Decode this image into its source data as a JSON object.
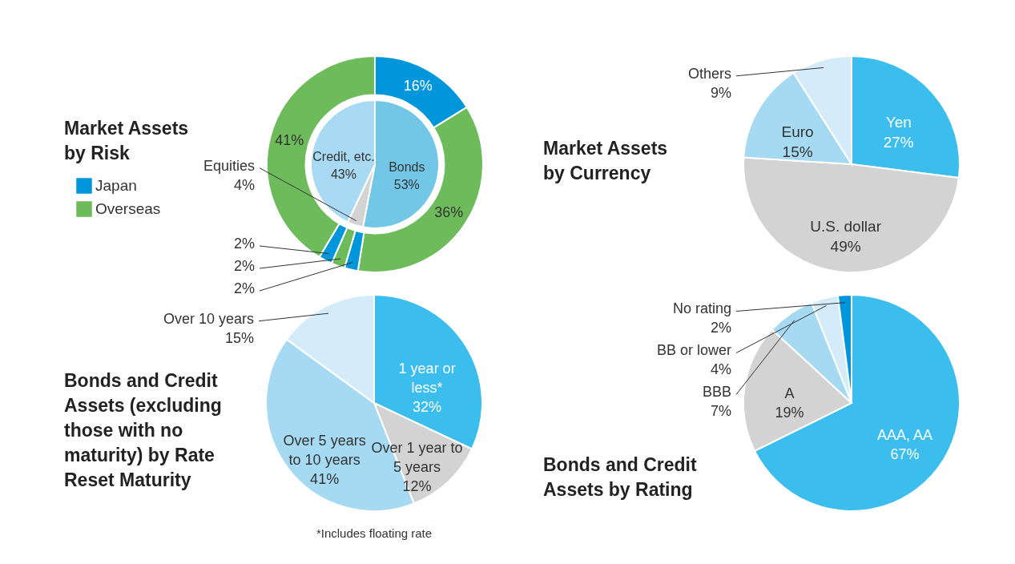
{
  "chart_data": [
    {
      "type": "donut",
      "title": "Market Assets by Risk",
      "categories": [
        "Japan",
        "Overseas",
        null,
        null,
        null,
        null
      ],
      "values": [
        16,
        36,
        2,
        2,
        2,
        41
      ],
      "value_labels": [
        "16%",
        "36%",
        "2%",
        "2%",
        "2%",
        "41%"
      ],
      "colors": [
        "#0096db",
        "#6dbb5a",
        "#0096db",
        "#6dbb5a",
        "#0096db",
        "#6dbb5a"
      ],
      "legend": "left"
    },
    {
      "type": "pie",
      "categories": [
        "Bonds",
        "Equities",
        "Credit, etc."
      ],
      "values": [
        53,
        4,
        43
      ],
      "value_labels": [
        "53%",
        "4%",
        "43%"
      ],
      "colors": [
        "#72c7e7",
        "#d3d3d3",
        "#a9daf3"
      ]
    },
    {
      "type": "pie",
      "title": "Market Assets by Currency",
      "categories": [
        "Yen",
        "U.S. dollar",
        "Euro",
        "Others"
      ],
      "values": [
        27,
        49,
        15,
        9
      ],
      "value_labels": [
        "27%",
        "49%",
        "15%",
        "9%"
      ],
      "colors": [
        "#3bbdee",
        "#d3d3d3",
        "#a6d9f2",
        "#d4ecf9"
      ]
    },
    {
      "type": "pie",
      "title": "Bonds and Credit Assets (excluding those with no maturity) by Rate Reset Maturity",
      "categories": [
        "1 year or less*",
        "Over 1 year to 5 years",
        "Over 5 years to 10 years",
        "Over 10 years"
      ],
      "values": [
        32,
        12,
        41,
        15
      ],
      "value_labels": [
        "32%",
        "12%",
        "41%",
        "15%"
      ],
      "colors": [
        "#3bbdee",
        "#d3d3d3",
        "#a6d9f2",
        "#d4ecf9"
      ],
      "annotations": [
        "*Includes floating rate"
      ]
    },
    {
      "type": "pie",
      "title": "Bonds and Credit Assets by Rating",
      "categories": [
        "AAA, AA",
        "A",
        "BBB",
        "BB or lower",
        "No rating"
      ],
      "values": [
        67,
        19,
        7,
        4,
        2
      ],
      "value_labels": [
        "67%",
        "19%",
        "7%",
        "4%",
        "2%"
      ],
      "colors": [
        "#3bbdee",
        "#d3d3d3",
        "#a6d9f2",
        "#d4ecf9",
        "#0096db"
      ]
    }
  ]
}
